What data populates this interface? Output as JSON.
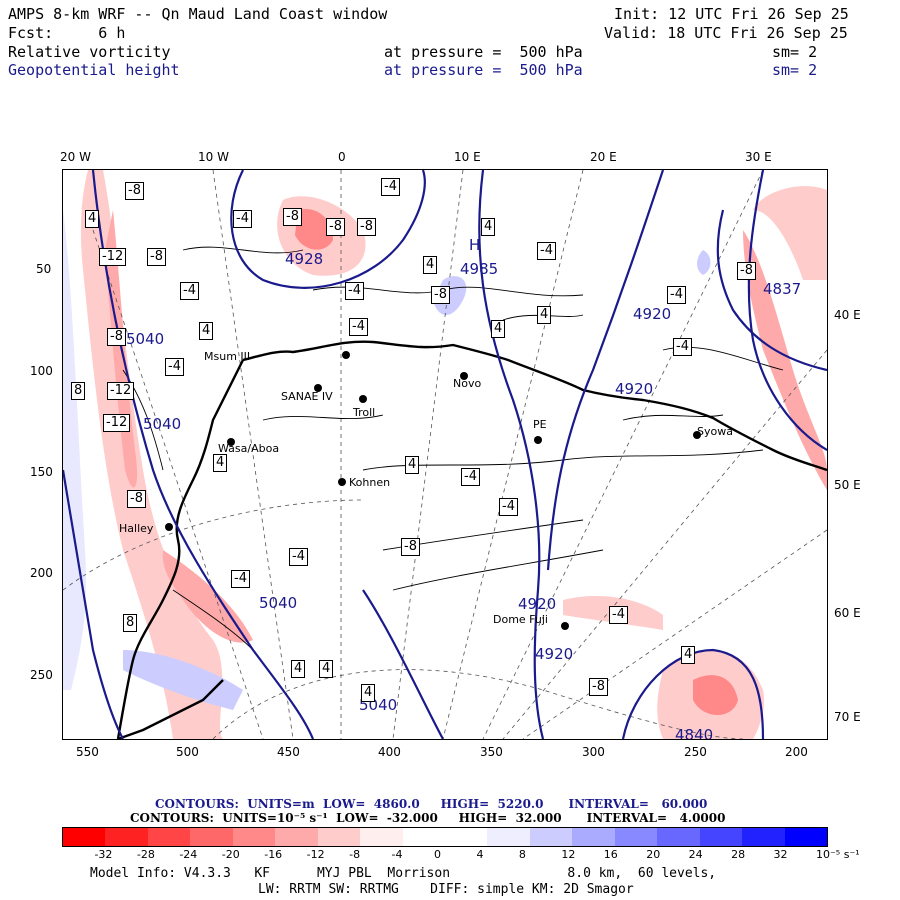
{
  "header": {
    "line1_left": "AMPS 8-km WRF -- Qn Maud Land Coast window",
    "line1_right": "Init: 12 UTC Fri 26 Sep 25",
    "line2_left": "Fcst:     6 h",
    "line2_right": "Valid: 18 UTC Fri 26 Sep 25",
    "line3_left": "Relative vorticity",
    "line3_mid": "at pressure =  500 hPa",
    "line3_right": "sm= 2",
    "line4_left": "Geopotential height",
    "line4_mid": "at pressure =  500 hPa",
    "line4_right": "sm= 2"
  },
  "axes": {
    "top_labels": [
      "20 W",
      "10 W",
      "0",
      "10 E",
      "20 E",
      "30 E"
    ],
    "left_labels": [
      "50",
      "100",
      "150",
      "200",
      "250"
    ],
    "right_labels": [
      "40 E",
      "50 E",
      "60 E",
      "70 E"
    ],
    "bottom_labels": [
      "550",
      "500",
      "450",
      "400",
      "350",
      "300",
      "250",
      "200"
    ]
  },
  "stations": [
    "Msum III",
    "SANAE IV",
    "Troll",
    "Novo",
    "Wasa/Aboa",
    "PE",
    "Kohnen",
    "Syowa",
    "Halley",
    "Dome Fuji"
  ],
  "height_labels": [
    "4928",
    "4985",
    "4920",
    "4920",
    "5040",
    "5040",
    "5040",
    "4920",
    "4920",
    "4837",
    "5040",
    "4840"
  ],
  "high_marker": "H",
  "vort_labels": [
    "-8",
    "-4",
    "-8",
    "-8",
    "-4",
    "-8",
    "-12",
    "-8",
    "-4",
    "4",
    "4",
    "4",
    "-4",
    "-8",
    "-4",
    "-4",
    "8",
    "4",
    "-8",
    "-12",
    "4",
    "4",
    "-4",
    "-4",
    "-8",
    "-4",
    "4",
    "4",
    "-4",
    "-8",
    "-4",
    "-4",
    "4",
    "4",
    "4",
    "8",
    "-12",
    "-4",
    "-8",
    "-4",
    "4",
    "-8"
  ],
  "contour_info": {
    "line1": "CONTOURS:  UNITS=m  LOW=  4860.0     HIGH=  5220.0      INTERVAL=   60.000",
    "line2": "CONTOURS:  UNITS=10⁻⁵ s⁻¹  LOW=  -32.000     HIGH=  32.000      INTERVAL=   4.0000"
  },
  "colorbar": {
    "ticks": [
      "-32",
      "-28",
      "-24",
      "-20",
      "-16",
      "-12",
      "-8",
      "-4",
      "0",
      "4",
      "8",
      "12",
      "16",
      "20",
      "24",
      "28",
      "32",
      "10⁻⁵ s⁻¹"
    ],
    "colors": [
      "#ff0000",
      "#ff2222",
      "#ff4545",
      "#ff6868",
      "#ff8888",
      "#ffaaaa",
      "#ffcccc",
      "#ffeeee",
      "#ffffff",
      "#ffffff",
      "#eeeeff",
      "#ccccff",
      "#aaaaff",
      "#8888ff",
      "#6868ff",
      "#4545ff",
      "#2222ff",
      "#0000ff"
    ]
  },
  "footer": {
    "line1": "Model Info: V4.3.3   KF      MYJ PBL  Morrison               8.0 km,  60 levels,",
    "line2": "LW: RRTM SW: RRTMG    DIFF: simple KM: 2D Smagor"
  }
}
